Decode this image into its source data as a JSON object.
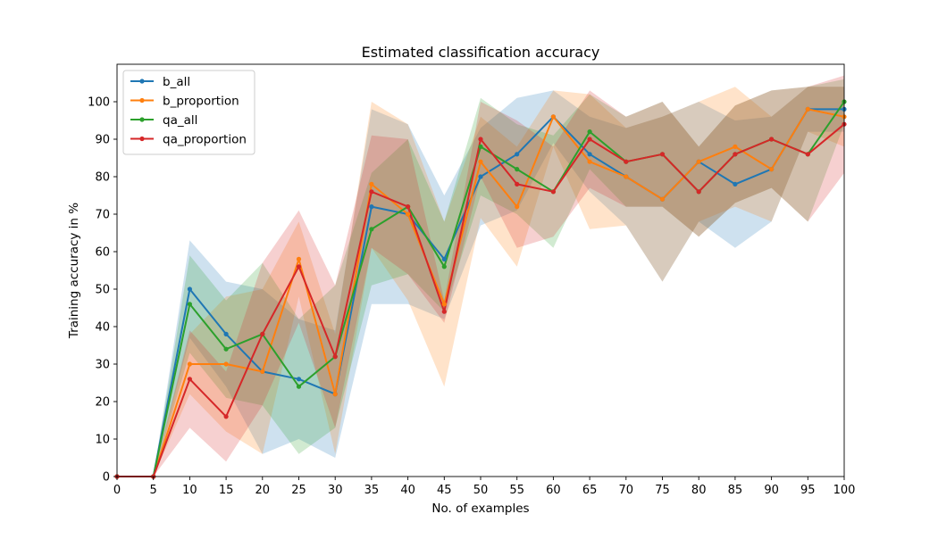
{
  "chart_data": {
    "type": "line",
    "title": "Estimated classification accuracy",
    "xlabel": "No. of examples",
    "ylabel": "Training accuracy in %",
    "xlim": [
      0,
      100
    ],
    "ylim": [
      0,
      110
    ],
    "x_ticks": [
      0,
      5,
      10,
      15,
      20,
      25,
      30,
      35,
      40,
      45,
      50,
      55,
      60,
      65,
      70,
      75,
      80,
      85,
      90,
      95,
      100
    ],
    "y_ticks": [
      0,
      10,
      20,
      30,
      40,
      50,
      60,
      70,
      80,
      90,
      100
    ],
    "grid": false,
    "legend_position": "top-left",
    "x": [
      0,
      5,
      10,
      15,
      20,
      25,
      30,
      35,
      40,
      45,
      50,
      55,
      60,
      65,
      70,
      75,
      80,
      85,
      90,
      95,
      100
    ],
    "series": [
      {
        "name": "b_all",
        "color": "#1f77b4",
        "values": [
          0,
          0,
          50,
          38,
          28,
          26,
          22,
          72,
          70,
          58,
          80,
          86,
          96,
          86,
          80,
          74,
          84,
          78,
          82,
          98,
          98
        ],
        "lower": [
          0,
          0,
          37,
          24,
          6,
          10,
          5,
          46,
          46,
          42,
          67,
          71,
          89,
          76,
          67,
          52,
          68,
          61,
          68,
          92,
          92
        ],
        "upper": [
          0,
          0,
          63,
          52,
          50,
          42,
          39,
          98,
          94,
          75,
          93,
          101,
          103,
          96,
          93,
          96,
          100,
          95,
          96,
          104,
          104
        ]
      },
      {
        "name": "b_proportion",
        "color": "#ff7f0e",
        "values": [
          0,
          0,
          30,
          30,
          28,
          58,
          22,
          78,
          70,
          46,
          84,
          72,
          96,
          84,
          80,
          74,
          84,
          88,
          82,
          98,
          96
        ],
        "lower": [
          0,
          0,
          22,
          12,
          6,
          48,
          6,
          61,
          47,
          24,
          69,
          56,
          88,
          66,
          67,
          52,
          68,
          72,
          68,
          92,
          88
        ],
        "upper": [
          0,
          0,
          38,
          48,
          50,
          68,
          38,
          100,
          94,
          68,
          96,
          88,
          103,
          102,
          93,
          96,
          100,
          104,
          96,
          104,
          104
        ]
      },
      {
        "name": "qa_all",
        "color": "#2ca02c",
        "values": [
          0,
          0,
          46,
          34,
          38,
          24,
          32,
          66,
          72,
          56,
          88,
          82,
          76,
          92,
          84,
          86,
          76,
          86,
          90,
          86,
          100
        ],
        "lower": [
          0,
          0,
          33,
          21,
          19,
          6,
          13,
          51,
          54,
          44,
          75,
          70,
          61,
          82,
          72,
          72,
          64,
          73,
          77,
          68,
          94
        ],
        "upper": [
          0,
          0,
          59,
          47,
          57,
          42,
          51,
          81,
          90,
          68,
          101,
          94,
          91,
          102,
          96,
          100,
          88,
          99,
          103,
          104,
          106
        ]
      },
      {
        "name": "qa_proportion",
        "color": "#d62728",
        "values": [
          0,
          0,
          26,
          16,
          38,
          56,
          32,
          76,
          72,
          44,
          90,
          78,
          76,
          90,
          84,
          86,
          76,
          86,
          90,
          86,
          94
        ],
        "lower": [
          0,
          0,
          13,
          4,
          19,
          41,
          13,
          61,
          54,
          41,
          80,
          61,
          64,
          77,
          72,
          72,
          64,
          73,
          77,
          68,
          81
        ],
        "upper": [
          0,
          0,
          39,
          28,
          57,
          71,
          51,
          91,
          90,
          47,
          100,
          95,
          88,
          103,
          96,
          100,
          88,
          99,
          103,
          104,
          107
        ]
      }
    ]
  }
}
